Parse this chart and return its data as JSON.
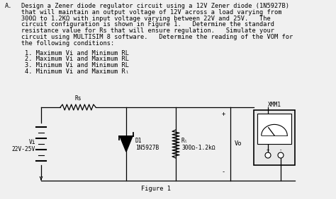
{
  "background_color": "#f0f0f0",
  "title_letter": "A.",
  "para_line1": "Design a Zener diode regulator circuit using a 12V Zener diode (1N5927B)",
  "para_line2": "that will maintain an output voltage of 12V across a load varying from",
  "para_line3": "300Ω to 1.2KΩ with input voltage varying between 22V and 25V.   The",
  "para_line4": "circuit configuration is shown in Figure 1.   Determine the standard",
  "para_line5": "resistance value for Rs that will ensure regulation.   Simulate your",
  "para_line6": "circuit using MULTISIM 8 software.   Determine the reading of the VOM for",
  "para_line7": "the following conditions:",
  "cond1": "1. Maximum Vi and Minimum RL",
  "cond2": "2. Maximum Vi and Maximum RL",
  "cond3": "3. Minimum Vi and Minimum RL",
  "cond4": "4. Minimum Vi and Maximum Rₗ",
  "figure_label": "Figure 1",
  "rs_label": "Rs",
  "d1_line1": "D1",
  "d1_line2": "1N5927B",
  "rl_line1": "Rₗ",
  "rl_line2": "300Ω-1.2kΩ",
  "vo_label": "Vo",
  "vi_line1": "Vi",
  "vi_line2": "22V-25V",
  "vmm_label": "XMM1",
  "plus_label": "+",
  "minus_label": "-",
  "term_plus": "+",
  "term_minus": "-"
}
